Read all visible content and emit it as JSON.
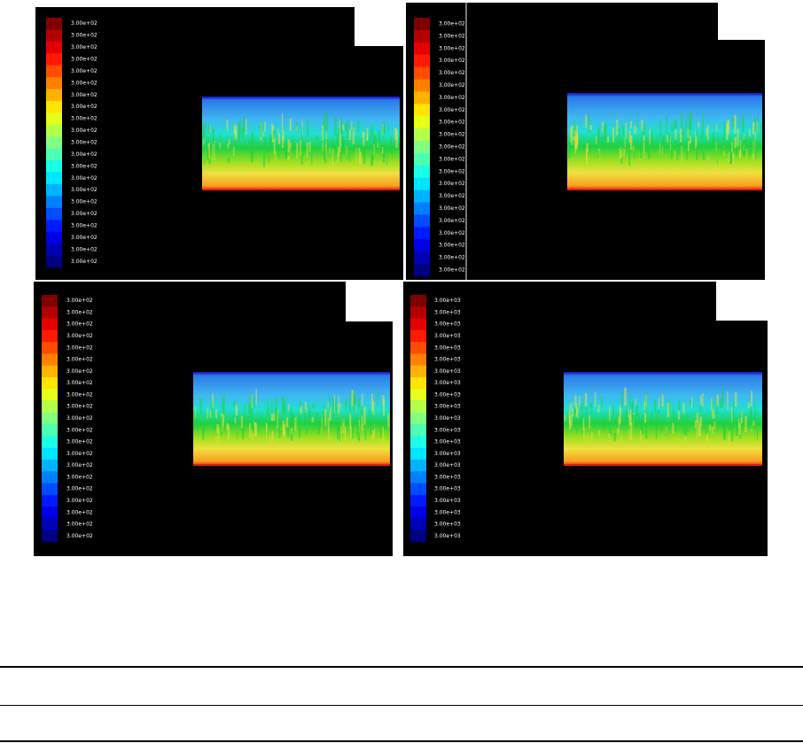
{
  "panels": [
    {
      "legend_labels": [
        "3.00e+02",
        "3.00e+02",
        "3.00e+02",
        "3.00e+02",
        "3.00e+02",
        "3.00e+02",
        "3.00e+02",
        "3.00e+02",
        "3.00e+02",
        "3.00e+02",
        "3.00e+02",
        "3.00e+02",
        "3.00e+02",
        "3.00e+02",
        "3.00e+02",
        "3.00e+02",
        "3.00e+02",
        "3.00e+02",
        "3.00e+02",
        "3.00e+02",
        "3.00e+02"
      ]
    },
    {
      "legend_labels": [
        "3.00e+02",
        "3.00e+02",
        "3.00e+02",
        "3.00e+02",
        "3.00e+02",
        "3.00e+02",
        "3.00e+02",
        "3.00e+02",
        "3.00e+02",
        "3.00e+02",
        "3.00e+02",
        "3.00e+02",
        "3.00e+02",
        "3.00e+02",
        "3.00e+02",
        "3.00e+02",
        "3.00e+02",
        "3.00e+02",
        "3.00e+02",
        "3.00e+02",
        "3.00e+02"
      ]
    },
    {
      "legend_labels": [
        "3.00e+02",
        "3.00e+02",
        "3.00e+02",
        "3.00e+02",
        "3.00e+02",
        "3.00e+02",
        "3.00e+02",
        "3.00e+02",
        "3.00e+02",
        "3.00e+02",
        "3.00e+02",
        "3.00e+02",
        "3.00e+02",
        "3.00e+02",
        "3.00e+02",
        "3.00e+02",
        "3.00e+02",
        "3.00e+02",
        "3.00e+02",
        "3.00e+02",
        "3.00e+02"
      ]
    },
    {
      "legend_labels": [
        "3.00e+03",
        "3.00e+03",
        "3.00e+03",
        "3.00e+03",
        "3.00e+03",
        "3.00e+03",
        "3.00e+03",
        "3.00e+03",
        "3.00e+03",
        "3.00e+03",
        "3.00e+03",
        "3.00e+03",
        "3.00e+03",
        "3.00e+03",
        "3.00e+03",
        "3.00e+03",
        "3.00e+03",
        "3.00e+03",
        "3.00e+03",
        "3.00e+03",
        "3.00e+03"
      ]
    }
  ]
}
